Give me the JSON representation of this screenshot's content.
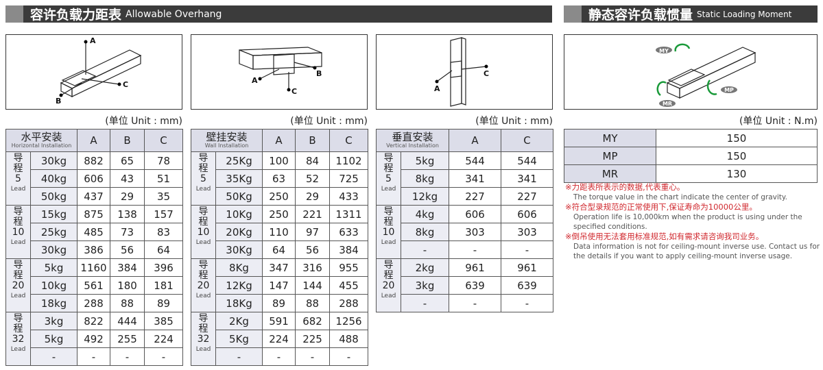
{
  "left_header": {
    "title_cn": "容许负载力距表",
    "title_en": "Allowable Overhang"
  },
  "right_header": {
    "title_cn": "静态容许负载惯量",
    "title_en": "Static Loading Moment"
  },
  "tables": [
    {
      "diagram_labels": [
        "A",
        "B",
        "C"
      ],
      "unit": "(单位 Unit : mm)",
      "header": {
        "cn": "水平安装",
        "en": "Horizontal Installation",
        "columns": [
          "A",
          "B",
          "C"
        ]
      },
      "groups": [
        {
          "label": "导程",
          "lead": "5",
          "unit": "Lead",
          "rows": [
            [
              "30kg",
              882,
              65,
              78
            ],
            [
              "40kg",
              606,
              43,
              51
            ],
            [
              "50kg",
              437,
              29,
              35
            ]
          ]
        },
        {
          "label": "导程",
          "lead": "10",
          "unit": "Lead",
          "rows": [
            [
              "15kg",
              875,
              138,
              157
            ],
            [
              "25kg",
              485,
              73,
              83
            ],
            [
              "30kg",
              386,
              56,
              64
            ]
          ]
        },
        {
          "label": "导程",
          "lead": "20",
          "unit": "Lead",
          "rows": [
            [
              "5kg",
              1160,
              384,
              396
            ],
            [
              "10kg",
              561,
              180,
              181
            ],
            [
              "18kg",
              288,
              88,
              89
            ]
          ]
        },
        {
          "label": "导程",
          "lead": "32",
          "unit": "Lead",
          "rows": [
            [
              "3kg",
              822,
              444,
              385
            ],
            [
              "5kg",
              492,
              255,
              224
            ],
            [
              "-",
              "-",
              "-",
              "-"
            ]
          ]
        }
      ]
    },
    {
      "diagram_labels": [
        "A",
        "B",
        "C"
      ],
      "unit": "(单位 Unit : mm)",
      "header": {
        "cn": "壁挂安装",
        "en": "Wall Installation",
        "columns": [
          "A",
          "B",
          "C"
        ]
      },
      "groups": [
        {
          "label": "导程",
          "lead": "5",
          "unit": "Lead",
          "rows": [
            [
              "25Kg",
              100,
              84,
              1102
            ],
            [
              "35Kg",
              63,
              52,
              725
            ],
            [
              "50Kg",
              250,
              29,
              433
            ]
          ]
        },
        {
          "label": "导程",
          "lead": "10",
          "unit": "Lead",
          "rows": [
            [
              "10Kg",
              250,
              221,
              1311
            ],
            [
              "20Kg",
              110,
              97,
              633
            ],
            [
              "30Kg",
              64,
              56,
              384
            ]
          ]
        },
        {
          "label": "导程",
          "lead": "20",
          "unit": "Lead",
          "rows": [
            [
              "8Kg",
              347,
              316,
              955
            ],
            [
              "12Kg",
              147,
              144,
              455
            ],
            [
              "18Kg",
              89,
              88,
              288
            ]
          ]
        },
        {
          "label": "导程",
          "lead": "32",
          "unit": "Lead",
          "rows": [
            [
              "2Kg",
              591,
              682,
              1256
            ],
            [
              "5Kg",
              224,
              225,
              488
            ],
            [
              "-",
              "-",
              "-",
              "-"
            ]
          ]
        }
      ]
    },
    {
      "diagram_labels": [
        "A",
        "C"
      ],
      "unit": "(单位 Unit : mm)",
      "header": {
        "cn": "垂直安装",
        "en": "Vertical Installation",
        "columns": [
          "A",
          "C"
        ]
      },
      "groups": [
        {
          "label": "导程",
          "lead": "5",
          "unit": "Lead",
          "rows": [
            [
              "5kg",
              544,
              544
            ],
            [
              "8kg",
              341,
              341
            ],
            [
              "12kg",
              227,
              227
            ]
          ]
        },
        {
          "label": "导程",
          "lead": "10",
          "unit": "Lead",
          "rows": [
            [
              "4kg",
              606,
              606
            ],
            [
              "8kg",
              303,
              303
            ],
            [
              "-",
              "-",
              "-"
            ]
          ]
        },
        {
          "label": "导程",
          "lead": "20",
          "unit": "Lead",
          "rows": [
            [
              "2kg",
              961,
              961
            ],
            [
              "3kg",
              639,
              639
            ],
            [
              "-",
              "-",
              "-"
            ]
          ]
        }
      ]
    }
  ],
  "moment": {
    "diagram_labels": [
      "MY",
      "MP",
      "MR"
    ],
    "unit": "(单位 Unit : N.m)",
    "rows": [
      [
        "MY",
        150
      ],
      [
        "MP",
        150
      ],
      [
        "MR",
        130
      ]
    ]
  },
  "notes": [
    {
      "cn": "※力距表所表示的数据,代表重心。",
      "en": "The torque value in the chart indicate the center of gravity."
    },
    {
      "cn": "※符合型录规范的正常使用下,保证寿命为10000公里。",
      "en": "Operation life is 10,000km when the product is using under the specified conditions."
    },
    {
      "cn": "※倒吊使用无法套用标准规范,如有需求请咨询我司业务。",
      "en": "Data information is not for ceiling-mount inverse use. Contact us for the details if you want to apply ceiling-mount inverse usage."
    }
  ]
}
